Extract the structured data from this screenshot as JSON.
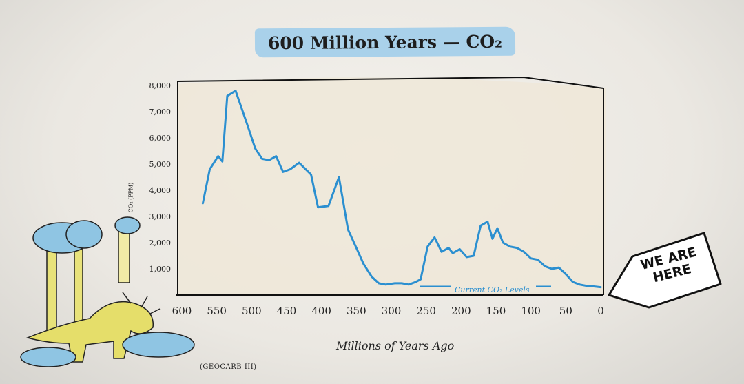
{
  "colors": {
    "line": "#2b8fd0",
    "title_bg": "#a9d1ea",
    "plot_bg": "#efe7d8"
  },
  "chart_data": {
    "type": "line",
    "title": "600 Million Years — CO₂",
    "xlabel": "Millions of Years Ago",
    "ylabel": "CO₂ (PPM)",
    "source": "(GEOCARB III)",
    "xlim": [
      600,
      0
    ],
    "ylim": [
      0,
      8500
    ],
    "x_ticks": [
      "600",
      "550",
      "500",
      "450",
      "400",
      "350",
      "300",
      "250",
      "200",
      "150",
      "100",
      "50",
      "0"
    ],
    "y_ticks": [
      "1,000",
      "2,000",
      "3,000",
      "4,000",
      "5,000",
      "6,000",
      "7,000",
      "8,000"
    ],
    "series": [
      {
        "x": [
          570,
          560,
          548,
          542,
          535,
          523,
          505,
          495,
          485,
          475,
          465,
          455,
          445,
          432,
          415,
          405,
          390,
          375,
          362,
          350,
          340,
          328,
          318,
          308,
          295,
          285,
          275,
          265,
          258,
          248,
          238,
          228,
          218,
          212,
          202,
          192,
          182,
          172,
          162,
          155,
          148,
          140,
          130,
          120,
          110,
          100,
          90,
          80,
          70,
          60,
          50,
          40,
          30,
          20,
          10,
          0
        ],
        "y": [
          3500,
          4800,
          5300,
          5100,
          7600,
          7800,
          6400,
          5600,
          5200,
          5150,
          5300,
          4700,
          4800,
          5050,
          4600,
          3350,
          3400,
          4500,
          2500,
          1800,
          1200,
          700,
          450,
          400,
          450,
          450,
          400,
          500,
          600,
          1850,
          2200,
          1650,
          1800,
          1600,
          1750,
          1450,
          1500,
          2650,
          2800,
          2150,
          2550,
          2000,
          1850,
          1800,
          1650,
          1400,
          1350,
          1100,
          1000,
          1050,
          800,
          500,
          400,
          350,
          330,
          300
        ]
      }
    ],
    "annotations": {
      "current_level": "Current CO₂ Levels",
      "current_level_value": 400,
      "marker": "WE ARE HERE"
    }
  }
}
